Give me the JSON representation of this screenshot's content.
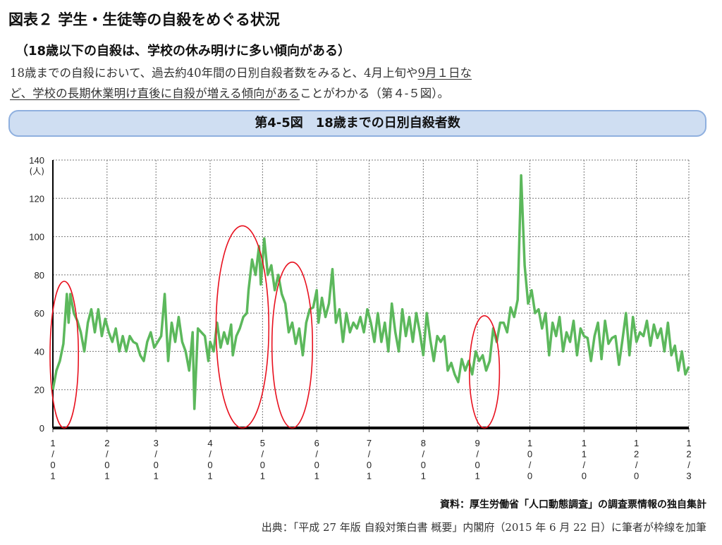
{
  "header": {
    "title": "図表２ 学生・生徒等の自殺をめぐる状況",
    "subtitle": "（18歳以下の自殺は、学校の休み明けに多い傾向がある）",
    "line1_a": "18歳までの自殺において、過去約40年間の日別自殺者数をみると、4月上旬や",
    "line1_b": "9月１日な",
    "line2_a": "ど、学校の長期休業明け直後に自殺が増える傾向がある",
    "line2_b": "ことがわかる（第４-５図）。"
  },
  "banner": "第4-5図　18歳までの日別自殺者数",
  "footer": {
    "source": "資料：厚生労働省「人口動態調査」の調査票情報の独自集計",
    "citation": "出典：「平成 27 年版 自殺対策白書 概要」内閣府（2015 年 6 月 22 日）に筆者が枠線を加筆"
  },
  "chart_data": {
    "type": "line",
    "title": "第4-5図　18歳までの日別自殺者数",
    "ylabel": "(人)",
    "ylim": [
      0,
      140
    ],
    "yticks": [
      0,
      20,
      40,
      60,
      80,
      100,
      120,
      140
    ],
    "xlim": [
      0,
      364
    ],
    "xticks": [
      {
        "day": 0,
        "label": "1/01"
      },
      {
        "day": 31,
        "label": "2/01"
      },
      {
        "day": 59,
        "label": "3/01"
      },
      {
        "day": 90,
        "label": "4/01"
      },
      {
        "day": 120,
        "label": "5/01"
      },
      {
        "day": 151,
        "label": "6/01"
      },
      {
        "day": 181,
        "label": "7/01"
      },
      {
        "day": 212,
        "label": "8/01"
      },
      {
        "day": 243,
        "label": "9/01"
      },
      {
        "day": 273,
        "label": "10/01"
      },
      {
        "day": 304,
        "label": "11/01"
      },
      {
        "day": 334,
        "label": "12/01"
      },
      {
        "day": 364,
        "label": "12/31"
      }
    ],
    "grid": true,
    "line_color": "#5cb85c",
    "highlight_color": "#e8101e",
    "highlights": [
      {
        "from": 0,
        "to": 13
      },
      {
        "from": 95,
        "to": 122
      },
      {
        "from": 127,
        "to": 147
      },
      {
        "from": 240,
        "to": 254
      }
    ],
    "series": [
      {
        "name": "日別自殺者数",
        "points": [
          [
            0,
            20
          ],
          [
            2,
            30
          ],
          [
            4,
            35
          ],
          [
            6,
            44
          ],
          [
            8,
            70
          ],
          [
            9,
            55
          ],
          [
            10,
            70
          ],
          [
            12,
            60
          ],
          [
            14,
            56
          ],
          [
            16,
            50
          ],
          [
            18,
            40
          ],
          [
            20,
            55
          ],
          [
            22,
            62
          ],
          [
            24,
            50
          ],
          [
            26,
            62
          ],
          [
            28,
            48
          ],
          [
            30,
            57
          ],
          [
            32,
            50
          ],
          [
            34,
            45
          ],
          [
            36,
            52
          ],
          [
            38,
            40
          ],
          [
            40,
            48
          ],
          [
            42,
            40
          ],
          [
            44,
            48
          ],
          [
            46,
            45
          ],
          [
            48,
            44
          ],
          [
            50,
            38
          ],
          [
            52,
            35
          ],
          [
            54,
            45
          ],
          [
            56,
            50
          ],
          [
            58,
            42
          ],
          [
            60,
            45
          ],
          [
            62,
            48
          ],
          [
            64,
            70
          ],
          [
            66,
            35
          ],
          [
            68,
            55
          ],
          [
            70,
            45
          ],
          [
            72,
            58
          ],
          [
            74,
            45
          ],
          [
            76,
            40
          ],
          [
            78,
            30
          ],
          [
            80,
            50
          ],
          [
            81,
            10
          ],
          [
            83,
            52
          ],
          [
            85,
            50
          ],
          [
            87,
            48
          ],
          [
            89,
            35
          ],
          [
            90,
            45
          ],
          [
            92,
            40
          ],
          [
            94,
            55
          ],
          [
            96,
            42
          ],
          [
            98,
            50
          ],
          [
            100,
            44
          ],
          [
            102,
            54
          ],
          [
            103,
            38
          ],
          [
            105,
            48
          ],
          [
            107,
            52
          ],
          [
            109,
            58
          ],
          [
            111,
            60
          ],
          [
            112,
            72
          ],
          [
            114,
            88
          ],
          [
            116,
            80
          ],
          [
            118,
            95
          ],
          [
            119,
            75
          ],
          [
            121,
            99
          ],
          [
            123,
            80
          ],
          [
            125,
            85
          ],
          [
            127,
            72
          ],
          [
            129,
            80
          ],
          [
            131,
            70
          ],
          [
            133,
            65
          ],
          [
            135,
            50
          ],
          [
            137,
            55
          ],
          [
            139,
            44
          ],
          [
            141,
            52
          ],
          [
            143,
            38
          ],
          [
            145,
            55
          ],
          [
            147,
            62
          ],
          [
            149,
            63
          ],
          [
            151,
            72
          ],
          [
            152,
            55
          ],
          [
            154,
            68
          ],
          [
            156,
            58
          ],
          [
            158,
            65
          ],
          [
            160,
            83
          ],
          [
            162,
            55
          ],
          [
            164,
            62
          ],
          [
            166,
            45
          ],
          [
            168,
            60
          ],
          [
            170,
            50
          ],
          [
            172,
            55
          ],
          [
            174,
            52
          ],
          [
            176,
            58
          ],
          [
            178,
            50
          ],
          [
            180,
            62
          ],
          [
            182,
            55
          ],
          [
            184,
            45
          ],
          [
            186,
            60
          ],
          [
            188,
            45
          ],
          [
            190,
            55
          ],
          [
            192,
            40
          ],
          [
            194,
            65
          ],
          [
            196,
            50
          ],
          [
            198,
            40
          ],
          [
            200,
            62
          ],
          [
            202,
            48
          ],
          [
            204,
            58
          ],
          [
            206,
            45
          ],
          [
            208,
            60
          ],
          [
            210,
            50
          ],
          [
            212,
            38
          ],
          [
            214,
            60
          ],
          [
            216,
            46
          ],
          [
            218,
            35
          ],
          [
            220,
            48
          ],
          [
            222,
            45
          ],
          [
            224,
            48
          ],
          [
            226,
            30
          ],
          [
            228,
            34
          ],
          [
            230,
            28
          ],
          [
            232,
            24
          ],
          [
            234,
            36
          ],
          [
            236,
            30
          ],
          [
            238,
            35
          ],
          [
            240,
            28
          ],
          [
            242,
            40
          ],
          [
            244,
            35
          ],
          [
            246,
            38
          ],
          [
            248,
            30
          ],
          [
            250,
            35
          ],
          [
            252,
            52
          ],
          [
            254,
            45
          ],
          [
            256,
            55
          ],
          [
            258,
            55
          ],
          [
            260,
            50
          ],
          [
            262,
            63
          ],
          [
            264,
            58
          ],
          [
            266,
            67
          ],
          [
            268,
            132
          ],
          [
            270,
            85
          ],
          [
            272,
            65
          ],
          [
            274,
            72
          ],
          [
            276,
            60
          ],
          [
            278,
            62
          ],
          [
            280,
            52
          ],
          [
            282,
            60
          ],
          [
            284,
            38
          ],
          [
            286,
            55
          ],
          [
            288,
            48
          ],
          [
            290,
            58
          ],
          [
            292,
            40
          ],
          [
            294,
            50
          ],
          [
            296,
            45
          ],
          [
            298,
            56
          ],
          [
            300,
            38
          ],
          [
            302,
            52
          ],
          [
            304,
            48
          ],
          [
            306,
            47
          ],
          [
            308,
            35
          ],
          [
            310,
            48
          ],
          [
            312,
            55
          ],
          [
            314,
            36
          ],
          [
            316,
            56
          ],
          [
            318,
            44
          ],
          [
            320,
            47
          ],
          [
            322,
            48
          ],
          [
            324,
            33
          ],
          [
            326,
            46
          ],
          [
            328,
            60
          ],
          [
            330,
            38
          ],
          [
            332,
            58
          ],
          [
            334,
            45
          ],
          [
            336,
            50
          ],
          [
            338,
            48
          ],
          [
            340,
            56
          ],
          [
            342,
            43
          ],
          [
            344,
            54
          ],
          [
            346,
            47
          ],
          [
            348,
            52
          ],
          [
            350,
            40
          ],
          [
            352,
            55
          ],
          [
            354,
            38
          ],
          [
            356,
            43
          ],
          [
            358,
            30
          ],
          [
            360,
            40
          ],
          [
            362,
            28
          ],
          [
            364,
            32
          ]
        ]
      }
    ]
  }
}
